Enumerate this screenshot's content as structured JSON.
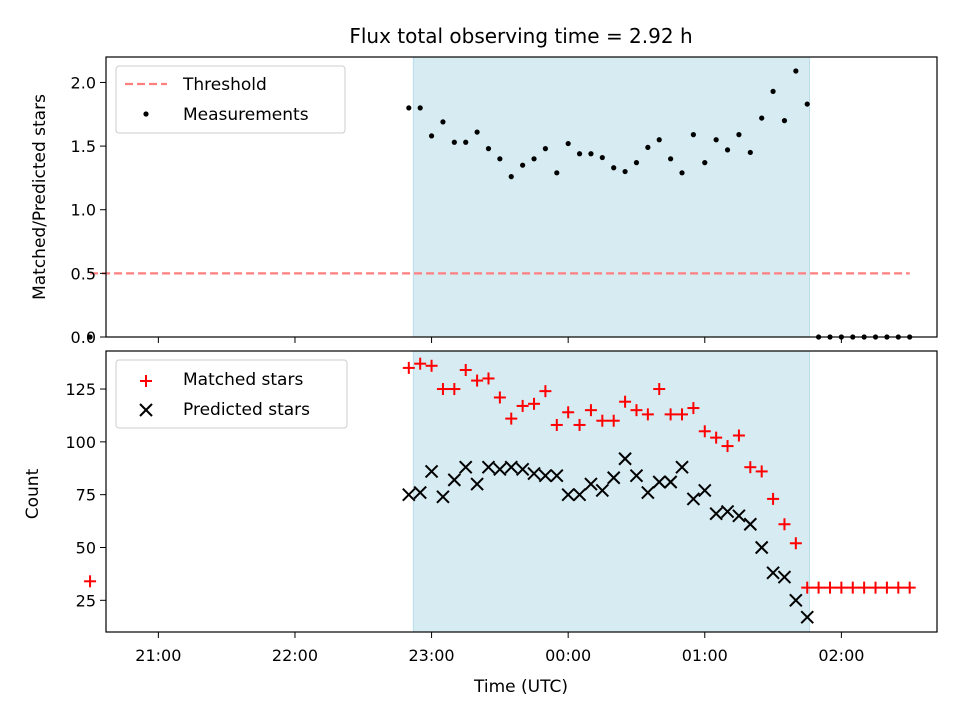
{
  "chart_data": [
    {
      "type": "scatter",
      "title": "Flux total observing time = 2.92 h",
      "xlabel": "",
      "ylabel": "Matched/Predicted stars",
      "xlim": [
        "20:37",
        "02:42"
      ],
      "ylim": [
        0,
        2.2
      ],
      "yticks": [
        "0.0",
        "0.5",
        "1.0",
        "1.5",
        "2.0"
      ],
      "xticks": [
        "21:00",
        "22:00",
        "23:00",
        "00:00",
        "01:00",
        "02:00"
      ],
      "shaded_span": [
        "22:52",
        "01:46"
      ],
      "legend": {
        "position": "upper-left",
        "entries": [
          {
            "label": "Threshold",
            "marker": "dashed-line",
            "color": "#ff7f7f"
          },
          {
            "label": "Measurements",
            "marker": "dot",
            "color": "#000000"
          }
        ]
      },
      "series": [
        {
          "name": "Threshold",
          "style": "dashed",
          "color": "#ff7f7f",
          "x": [
            "20:30",
            "02:30"
          ],
          "y": [
            0.5,
            0.5
          ]
        },
        {
          "name": "Measurements",
          "style": "dot",
          "color": "#000000",
          "x": [
            "20:30",
            "22:50",
            "22:55",
            "23:00",
            "23:05",
            "23:10",
            "23:15",
            "23:20",
            "23:25",
            "23:30",
            "23:35",
            "23:40",
            "23:45",
            "23:50",
            "23:55",
            "00:00",
            "00:05",
            "00:10",
            "00:15",
            "00:20",
            "00:25",
            "00:30",
            "00:35",
            "00:40",
            "00:45",
            "00:50",
            "00:55",
            "01:00",
            "01:05",
            "01:10",
            "01:15",
            "01:20",
            "01:25",
            "01:30",
            "01:35",
            "01:40",
            "01:45",
            "01:50",
            "01:55",
            "02:00",
            "02:05",
            "02:10",
            "02:15",
            "02:20",
            "02:25",
            "02:30"
          ],
          "y": [
            0.0,
            1.8,
            1.8,
            1.58,
            1.69,
            1.53,
            1.53,
            1.61,
            1.48,
            1.4,
            1.26,
            1.35,
            1.4,
            1.48,
            1.29,
            1.52,
            1.44,
            1.44,
            1.41,
            1.33,
            1.3,
            1.37,
            1.49,
            1.55,
            1.4,
            1.29,
            1.59,
            1.37,
            1.55,
            1.47,
            1.59,
            1.45,
            1.72,
            1.93,
            1.7,
            2.09,
            1.83,
            0.0,
            0.0,
            0.0,
            0.0,
            0.0,
            0.0,
            0.0,
            0.0,
            0.0
          ]
        }
      ]
    },
    {
      "type": "scatter",
      "title": "",
      "xlabel": "Time (UTC)",
      "ylabel": "Count",
      "xlim": [
        "20:37",
        "02:42"
      ],
      "ylim": [
        10,
        143
      ],
      "yticks": [
        "25",
        "50",
        "75",
        "100",
        "125"
      ],
      "xticks": [
        "21:00",
        "22:00",
        "23:00",
        "00:00",
        "01:00",
        "02:00"
      ],
      "shaded_span": [
        "22:52",
        "01:46"
      ],
      "legend": {
        "position": "upper-left",
        "entries": [
          {
            "label": "Matched stars",
            "marker": "plus",
            "color": "#ff0000"
          },
          {
            "label": "Predicted stars",
            "marker": "x",
            "color": "#000000"
          }
        ]
      },
      "series": [
        {
          "name": "Matched stars",
          "style": "plus",
          "color": "#ff0000",
          "x": [
            "20:30",
            "22:50",
            "22:55",
            "23:00",
            "23:05",
            "23:10",
            "23:15",
            "23:20",
            "23:25",
            "23:30",
            "23:35",
            "23:40",
            "23:45",
            "23:50",
            "23:55",
            "00:00",
            "00:05",
            "00:10",
            "00:15",
            "00:20",
            "00:25",
            "00:30",
            "00:35",
            "00:40",
            "00:45",
            "00:50",
            "00:55",
            "01:00",
            "01:05",
            "01:10",
            "01:15",
            "01:20",
            "01:25",
            "01:30",
            "01:35",
            "01:40",
            "01:45",
            "01:50",
            "01:55",
            "02:00",
            "02:05",
            "02:10",
            "02:15",
            "02:20",
            "02:25",
            "02:30"
          ],
          "y": [
            34,
            135,
            137,
            136,
            125,
            125,
            134,
            129,
            130,
            121,
            111,
            117,
            118,
            124,
            108,
            114,
            108,
            115,
            110,
            110,
            119,
            115,
            113,
            125,
            113,
            113,
            116,
            105,
            102,
            98,
            103,
            88,
            86,
            73,
            61,
            52,
            31,
            31,
            31,
            31,
            31,
            31,
            31,
            31,
            31,
            31
          ]
        },
        {
          "name": "Predicted stars",
          "style": "x",
          "color": "#000000",
          "x": [
            "22:50",
            "22:55",
            "23:00",
            "23:05",
            "23:10",
            "23:15",
            "23:20",
            "23:25",
            "23:30",
            "23:35",
            "23:40",
            "23:45",
            "23:50",
            "23:55",
            "00:00",
            "00:05",
            "00:10",
            "00:15",
            "00:20",
            "00:25",
            "00:30",
            "00:35",
            "00:40",
            "00:45",
            "00:50",
            "00:55",
            "01:00",
            "01:05",
            "01:10",
            "01:15",
            "01:20",
            "01:25",
            "01:30",
            "01:35",
            "01:40",
            "01:45"
          ],
          "y": [
            75,
            76,
            86,
            74,
            82,
            88,
            80,
            88,
            87,
            88,
            87,
            85,
            84,
            84,
            75,
            75,
            80,
            77,
            83,
            92,
            84,
            76,
            81,
            81,
            88,
            73,
            77,
            66,
            67,
            65,
            61,
            50,
            38,
            36,
            25,
            17
          ]
        }
      ]
    }
  ]
}
